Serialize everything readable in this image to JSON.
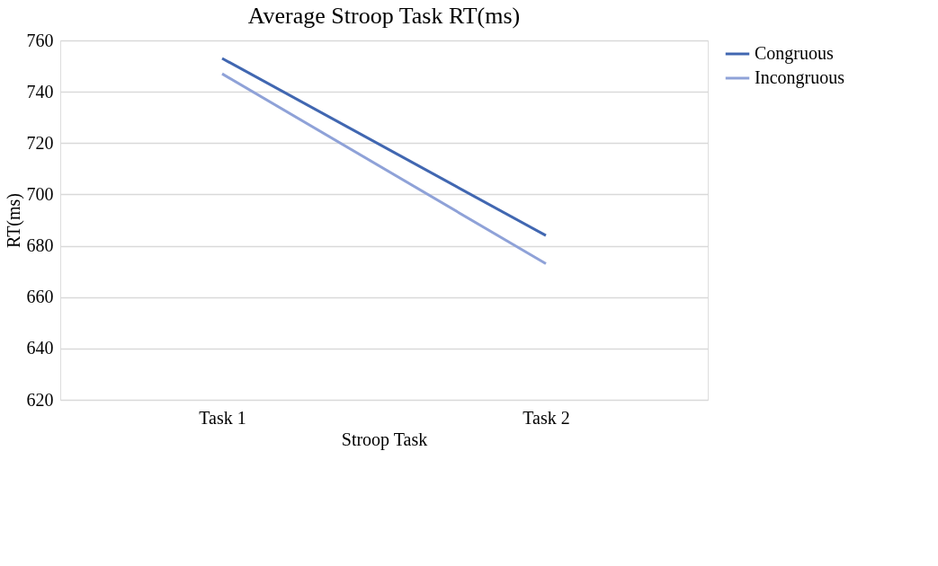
{
  "chart_data": {
    "type": "line",
    "title": "Average Stroop Task RT(ms)",
    "xlabel": "Stroop Task",
    "ylabel": "RT(ms)",
    "categories": [
      "Task 1",
      "Task 2"
    ],
    "series": [
      {
        "name": "Congruous",
        "color": "#4167b1",
        "values": [
          753,
          684
        ]
      },
      {
        "name": "Incongruous",
        "color": "#8fa2d8",
        "values": [
          747,
          673
        ]
      }
    ],
    "ylim": [
      620,
      760
    ],
    "yticks": [
      620,
      640,
      660,
      680,
      700,
      720,
      740,
      760
    ],
    "grid": "y",
    "legend": "right",
    "marker": "none",
    "line_style": "solid"
  }
}
